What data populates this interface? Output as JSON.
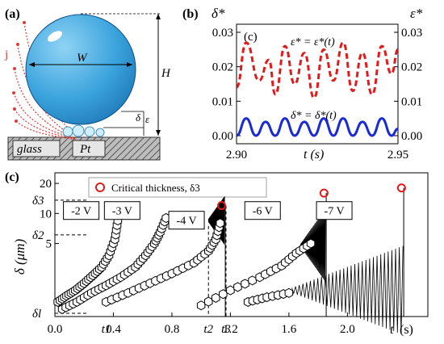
{
  "panel_a": {
    "label": "(a)",
    "jet_label": "j",
    "width_label": "W",
    "height_label": "H",
    "eps_label": "ε",
    "delta_label": "δ",
    "substrate_left": "glass",
    "substrate_right": "Pt",
    "colors": {
      "drop": "#3aa3dc",
      "jet": "#e23a3a",
      "electrode": "#e6e6e6"
    }
  },
  "chart_data": [
    {
      "id": "b",
      "type": "line",
      "panel_label": "(b)",
      "inset_label": "(c)",
      "left_ylabel": "δ*",
      "right_ylabel": "ε*",
      "xlabel": "t (s)",
      "xlim": [
        2.9,
        2.95
      ],
      "ylim": [
        0.0,
        0.03
      ],
      "x_ticks": [
        "2.90",
        "2.95"
      ],
      "y_ticks": [
        "0.00",
        "0.01",
        "0.02",
        "0.03"
      ],
      "series": [
        {
          "name": "ε* = ε*(t)",
          "color": "#e01b1b",
          "style": "dashed",
          "x": [
            2.9,
            2.903,
            2.907,
            2.91,
            2.912,
            2.915,
            2.918,
            2.921,
            2.924,
            2.927,
            2.93,
            2.933,
            2.936,
            2.939,
            2.942,
            2.945,
            2.948,
            2.95
          ],
          "y": [
            0.014,
            0.027,
            0.016,
            0.022,
            0.012,
            0.026,
            0.015,
            0.024,
            0.011,
            0.025,
            0.016,
            0.027,
            0.013,
            0.024,
            0.012,
            0.026,
            0.018,
            0.025
          ]
        },
        {
          "name": "δ* = δ*(t)",
          "color": "#1a2bd6",
          "style": "solid",
          "x": [
            2.9,
            2.903,
            2.906,
            2.909,
            2.912,
            2.915,
            2.918,
            2.921,
            2.924,
            2.927,
            2.93,
            2.933,
            2.936,
            2.939,
            2.942,
            2.945,
            2.948,
            2.95
          ],
          "y": [
            0.0,
            0.005,
            0.0,
            0.004,
            0.0,
            0.005,
            0.0,
            0.004,
            0.0,
            0.005,
            0.0,
            0.005,
            0.0,
            0.004,
            0.0,
            0.005,
            0.0,
            0.002
          ]
        }
      ]
    },
    {
      "id": "c",
      "type": "scatter",
      "panel_label": "(c)",
      "xlabel": "t",
      "xunit": "(s)",
      "ylabel": "δ (μm)",
      "yscale": "log",
      "xlim": [
        0.0,
        2.55
      ],
      "ylim": [
        1.0,
        22.0
      ],
      "x_ticks": [
        "0.0",
        "0.4",
        "0.8",
        "1.2",
        "1.6",
        "2.0"
      ],
      "y_ticks": [
        "20",
        "10",
        "5"
      ],
      "y_symbol_ticks": [
        "δ3",
        "δ2",
        "δl"
      ],
      "x_symbol_ticks": [
        "t1",
        "t2",
        "t3"
      ],
      "legend": "Critical thickness, δ3",
      "voltage_labels": [
        "-2 V",
        "-3 V",
        "-4 V",
        "-6 V",
        "-7 V"
      ],
      "series": [
        {
          "name": "-2 V",
          "x": [
            0.02,
            0.08,
            0.14,
            0.2,
            0.26,
            0.32,
            0.37,
            0.41,
            0.43
          ],
          "y": [
            1.3,
            1.5,
            1.7,
            2.0,
            2.4,
            2.9,
            3.8,
            5.5,
            8.5
          ]
        },
        {
          "name": "-3 V",
          "x": [
            0.05,
            0.15,
            0.25,
            0.35,
            0.45,
            0.55,
            0.62,
            0.68,
            0.72,
            0.76
          ],
          "y": [
            1.1,
            1.3,
            1.6,
            1.9,
            2.3,
            2.9,
            3.8,
            5.0,
            6.5,
            9.0
          ]
        },
        {
          "name": "-4 V",
          "x": [
            0.35,
            0.5,
            0.65,
            0.8,
            0.95,
            1.05,
            1.1,
            1.13
          ],
          "y": [
            1.3,
            1.6,
            2.0,
            2.5,
            3.2,
            4.2,
            5.5,
            8.0
          ]
        },
        {
          "name": "-6 V",
          "x": [
            1.0,
            1.2,
            1.4,
            1.55,
            1.65,
            1.75
          ],
          "y": [
            1.2,
            1.7,
            2.3,
            3.0,
            4.0,
            5.0
          ]
        },
        {
          "name": "-7 V",
          "x": [
            1.32,
            1.45,
            1.6
          ],
          "y": [
            1.3,
            1.45,
            1.6
          ]
        }
      ],
      "critical_points": {
        "x": [
          1.14,
          1.84,
          2.37
        ],
        "y": [
          12.0,
          16.0,
          18.0
        ]
      },
      "colors": {
        "markers": "#000000",
        "critical": "#e01b1b"
      }
    }
  ]
}
